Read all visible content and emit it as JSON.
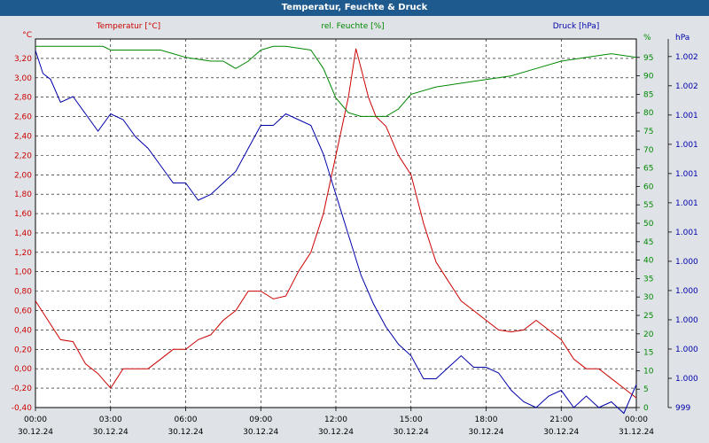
{
  "window": {
    "title": "Temperatur, Feuchte & Druck"
  },
  "colors": {
    "temperature": "#cc0000",
    "humidity": "#008800",
    "pressure": "#0000aa",
    "title_bg": "#1e5a8e",
    "plot_bg": "#ffffff",
    "page_bg": "#dfe3e8"
  },
  "chart_data": {
    "type": "line",
    "title": "Temperatur, Feuchte & Druck",
    "grid": true,
    "legend": "top",
    "x": {
      "ticks": [
        "00:00",
        "03:00",
        "06:00",
        "09:00",
        "12:00",
        "15:00",
        "18:00",
        "21:00",
        "00:00"
      ],
      "dates": [
        "30.12.24",
        "30.12.24",
        "30.12.24",
        "30.12.24",
        "30.12.24",
        "30.12.24",
        "30.12.24",
        "30.12.24",
        "31.12.24"
      ],
      "range_hours": [
        0,
        24
      ]
    },
    "axes": {
      "temperature": {
        "label": "Temperatur [°C]",
        "unit": "°C",
        "range": [
          -0.4,
          3.4
        ],
        "ticks": [
          "-0,40",
          "-0,20",
          "0,00",
          "0,20",
          "0,40",
          "0,60",
          "0,80",
          "1,00",
          "1,20",
          "1,40",
          "1,60",
          "1,80",
          "2,00",
          "2,20",
          "2,40",
          "2,60",
          "2,80",
          "3,00",
          "3,20"
        ]
      },
      "humidity": {
        "label": "rel. Feuchte [%]",
        "unit": "%",
        "range": [
          0,
          100
        ],
        "ticks": [
          "0",
          "5",
          "10",
          "15",
          "20",
          "25",
          "30",
          "35",
          "40",
          "45",
          "50",
          "55",
          "60",
          "65",
          "70",
          "75",
          "80",
          "85",
          "90",
          "95"
        ]
      },
      "pressure": {
        "label": "Druck [hPa]",
        "unit": "hPa",
        "range": [
          999.0,
          1002.2
        ],
        "ticks": [
          "999",
          "1.000",
          "1.000",
          "1.000",
          "1.000",
          "1.000",
          "1.001",
          "1.001",
          "1.001",
          "1.001",
          "1.001",
          "1.002",
          "1.002"
        ]
      }
    },
    "series": [
      {
        "name": "Temperatur [°C]",
        "axis": "temperature",
        "x": [
          0,
          0.5,
          1,
          1.5,
          2,
          2.5,
          3,
          3.5,
          4,
          4.5,
          5,
          5.5,
          6,
          6.5,
          7,
          7.5,
          8,
          8.5,
          9,
          9.5,
          10,
          10.5,
          11,
          11.5,
          12,
          12.5,
          12.8,
          13,
          13.3,
          13.6,
          14,
          14.5,
          15,
          15.5,
          16,
          16.5,
          17,
          17.5,
          18,
          18.5,
          19,
          19.5,
          20,
          20.5,
          21,
          21.5,
          22,
          22.5,
          23,
          23.5,
          24
        ],
        "y": [
          0.7,
          0.5,
          0.3,
          0.28,
          0.05,
          -0.05,
          -0.2,
          0.0,
          0.0,
          0.0,
          0.1,
          0.2,
          0.2,
          0.3,
          0.35,
          0.5,
          0.6,
          0.8,
          0.8,
          0.72,
          0.75,
          1.0,
          1.2,
          1.6,
          2.2,
          2.8,
          3.3,
          3.1,
          2.8,
          2.6,
          2.5,
          2.2,
          2.0,
          1.5,
          1.1,
          0.9,
          0.7,
          0.6,
          0.5,
          0.4,
          0.38,
          0.4,
          0.5,
          0.4,
          0.3,
          0.1,
          0.0,
          0.0,
          -0.1,
          -0.2,
          -0.3
        ]
      },
      {
        "name": "rel. Feuchte [%]",
        "axis": "humidity",
        "x": [
          0,
          1,
          2,
          2.7,
          3,
          4,
          5,
          5.5,
          6,
          7,
          7.5,
          8,
          8.5,
          9,
          9.5,
          10,
          11,
          11.5,
          12,
          12.5,
          13,
          14,
          14.5,
          15,
          16,
          17,
          18,
          19,
          20,
          21,
          22,
          23,
          24
        ],
        "y": [
          98,
          98,
          98,
          98,
          97,
          97,
          97,
          96,
          95,
          94,
          94,
          92,
          94,
          97,
          98,
          98,
          97,
          92,
          84,
          80,
          79,
          79,
          81,
          85,
          87,
          88,
          89,
          90,
          92,
          94,
          95,
          96,
          95
        ]
      },
      {
        "name": "Druck [hPa]",
        "axis": "pressure",
        "x": [
          0,
          0.3,
          0.6,
          1,
          1.5,
          2,
          2.5,
          3,
          3.5,
          4,
          4.5,
          5,
          5.5,
          6,
          6.5,
          7,
          7.5,
          8,
          8.5,
          9,
          9.5,
          10,
          10.5,
          11,
          11.5,
          12,
          12.5,
          13,
          13.5,
          14,
          14.5,
          15,
          15.5,
          16,
          16.5,
          17,
          17.5,
          18,
          18.5,
          19,
          19.5,
          20,
          20.5,
          21,
          21.5,
          22,
          22.5,
          23,
          23.5,
          24
        ],
        "y": [
          1002.1,
          1001.9,
          1001.85,
          1001.65,
          1001.7,
          1001.55,
          1001.4,
          1001.55,
          1001.5,
          1001.35,
          1001.25,
          1001.1,
          1000.95,
          1000.95,
          1000.8,
          1000.85,
          1000.95,
          1001.05,
          1001.25,
          1001.45,
          1001.45,
          1001.55,
          1001.5,
          1001.45,
          1001.2,
          1000.85,
          1000.5,
          1000.15,
          999.9,
          999.7,
          999.55,
          999.45,
          999.25,
          999.25,
          999.35,
          999.45,
          999.35,
          999.35,
          999.3,
          999.15,
          999.05,
          999.0,
          999.1,
          999.15,
          999.0,
          999.1,
          999.0,
          999.05,
          998.95,
          999.2
        ]
      }
    ]
  }
}
